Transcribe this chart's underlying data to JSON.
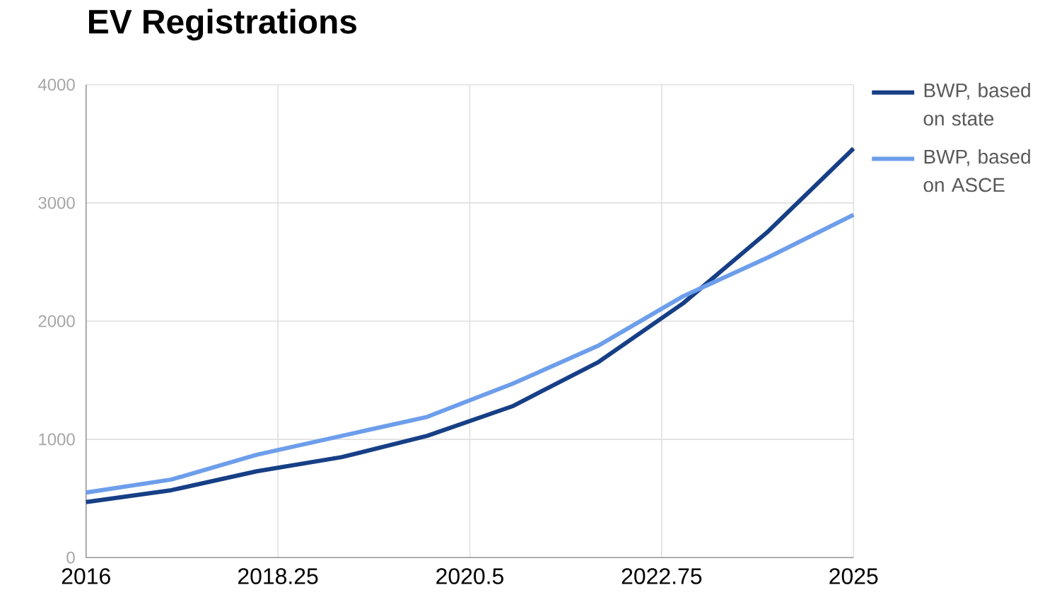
{
  "chart_data": {
    "type": "line",
    "title": "EV Registrations",
    "x": [
      2016,
      2017,
      2018,
      2019,
      2020,
      2021,
      2022,
      2023,
      2024,
      2025
    ],
    "series": [
      {
        "name": "BWP, based on state",
        "color": "#163f86",
        "values": [
          470,
          570,
          730,
          850,
          1030,
          1280,
          1650,
          2150,
          2760,
          3460
        ]
      },
      {
        "name": "BWP, based on ASCE",
        "color": "#6d9eeb",
        "values": [
          550,
          660,
          870,
          1030,
          1190,
          1470,
          1790,
          2210,
          2540,
          2900
        ]
      }
    ],
    "xlim": [
      2016,
      2025
    ],
    "xticks": [
      2016,
      2018.25,
      2020.5,
      2022.75,
      2025
    ],
    "ylim": [
      0,
      4000
    ],
    "yticks": [
      0,
      1000,
      2000,
      3000,
      4000
    ],
    "grid": true,
    "legend": "top right",
    "marker": "none",
    "line_style": "solid"
  }
}
